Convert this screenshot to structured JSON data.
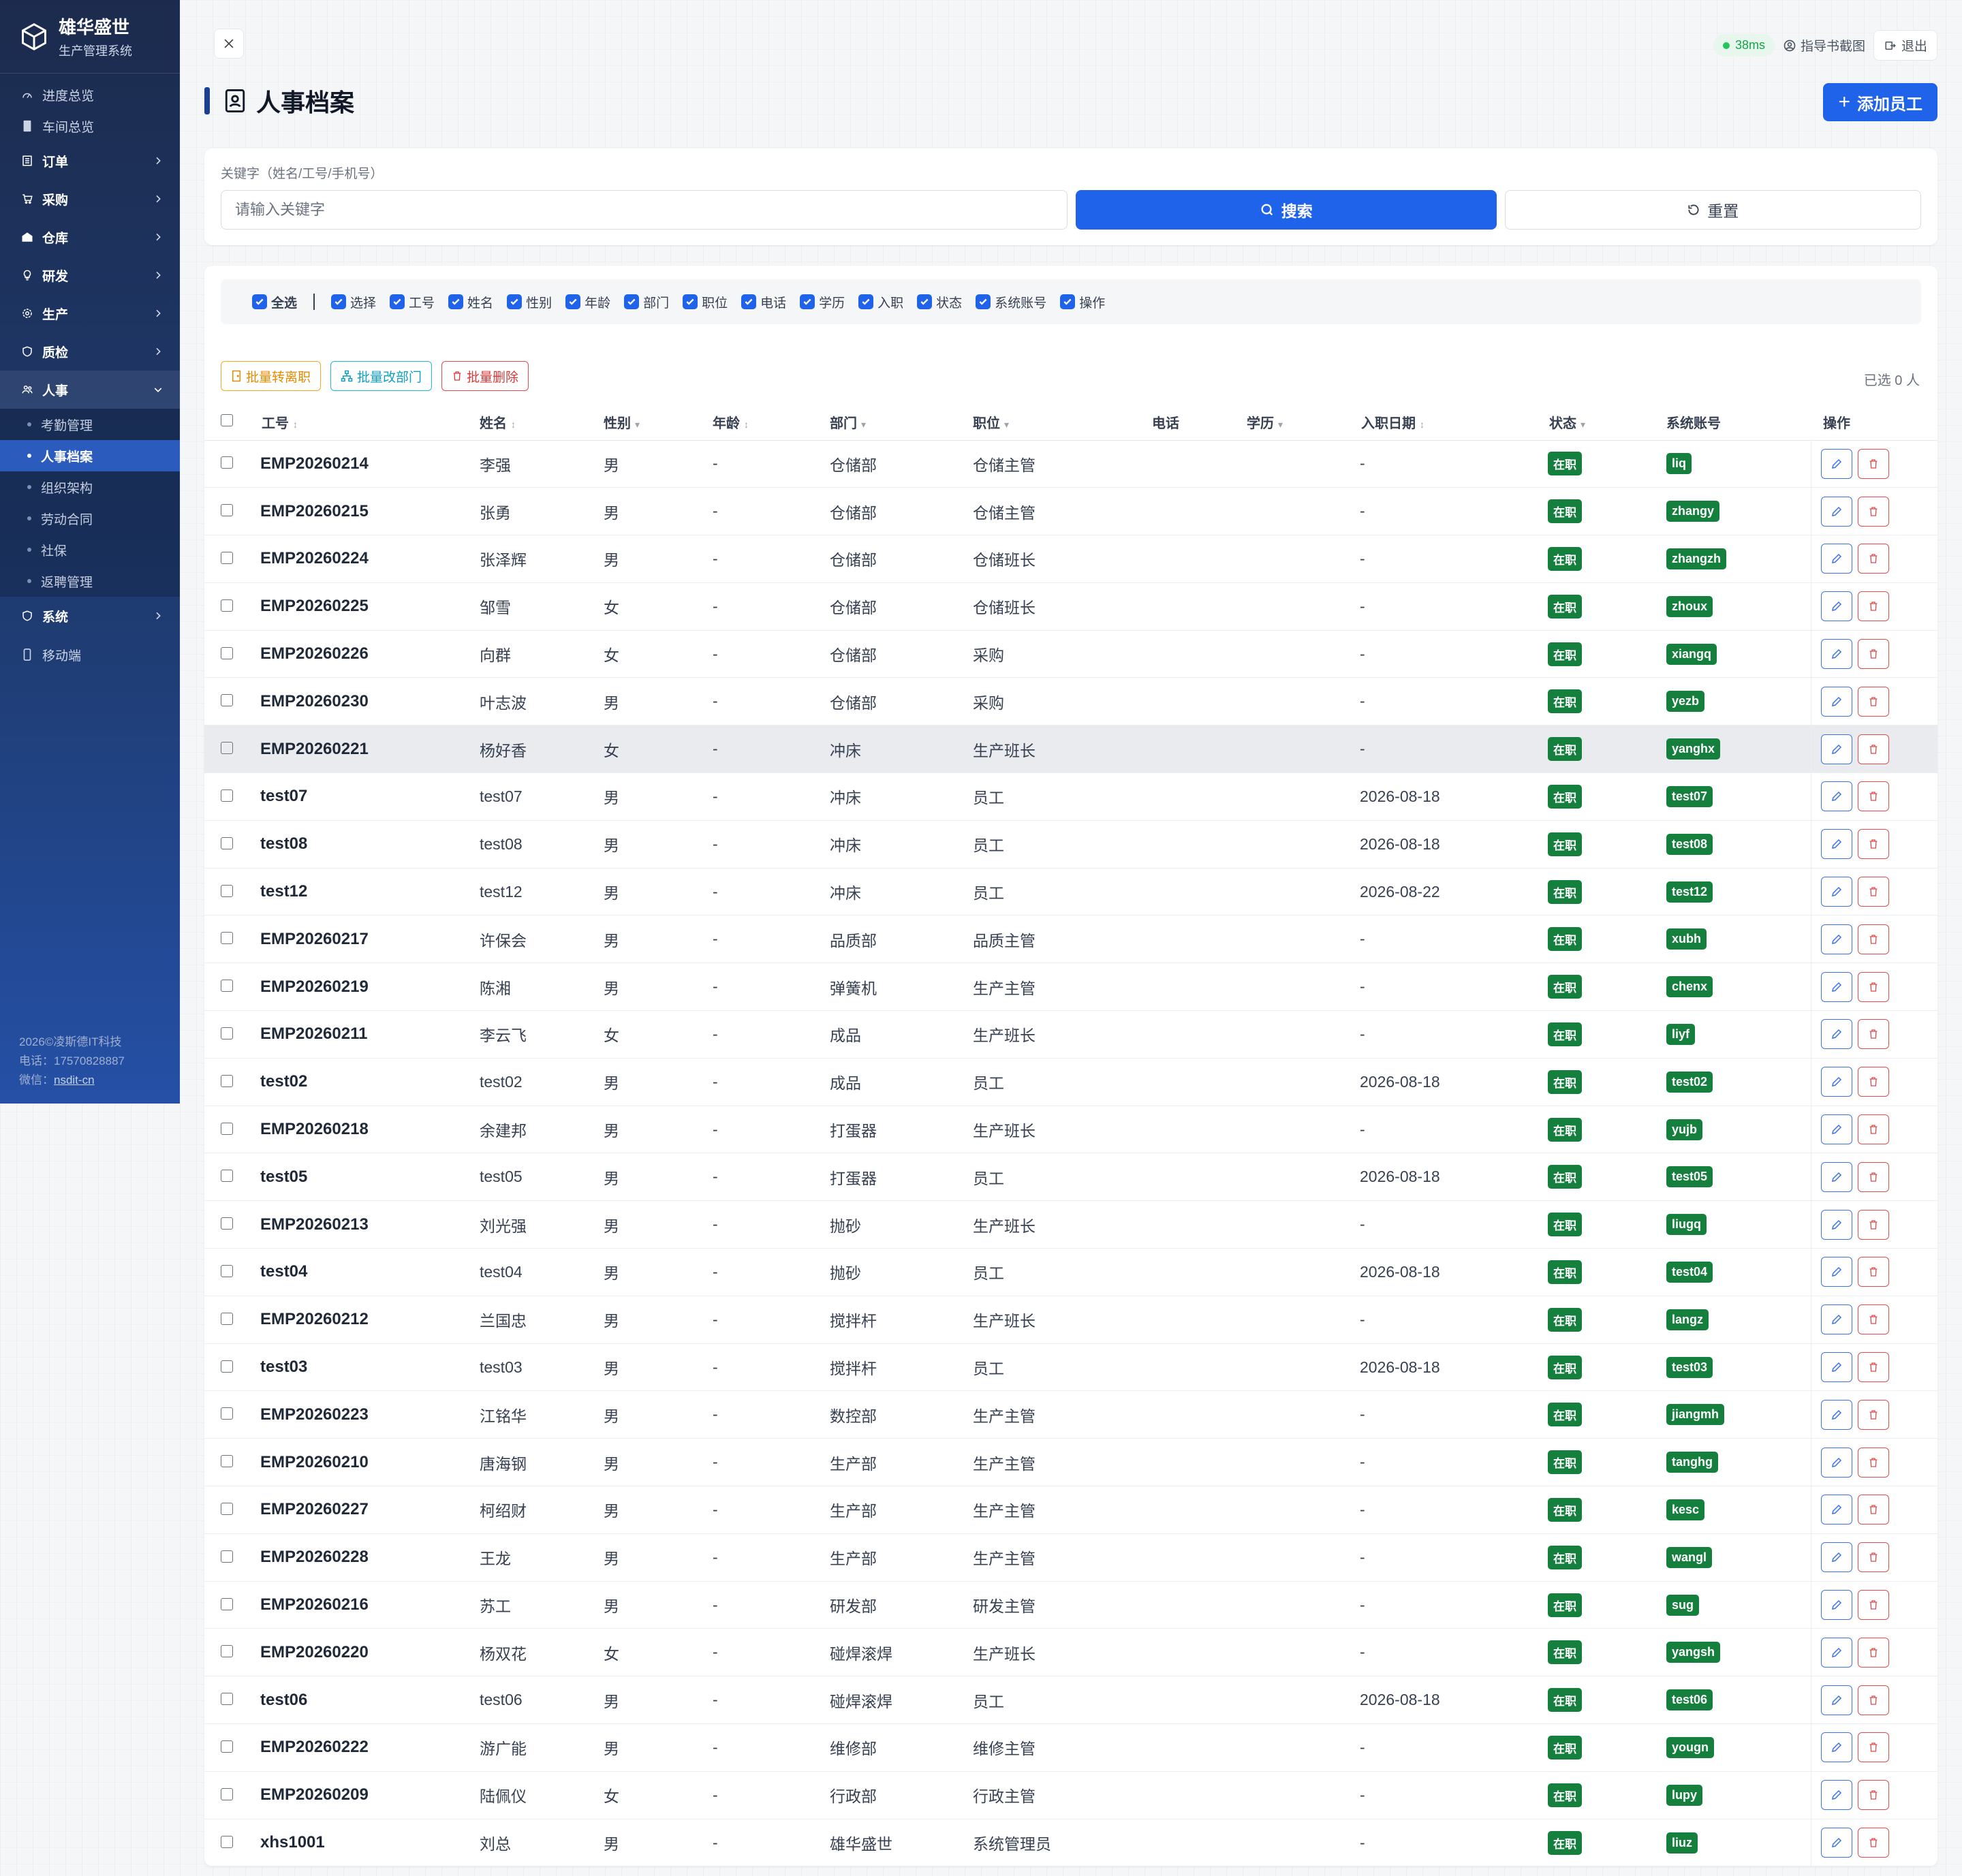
{
  "brand": {
    "title": "雄华盛世",
    "subtitle": "生产管理系统"
  },
  "sidebar": {
    "items": [
      {
        "label": "进度总览",
        "type": "link",
        "icon": "gauge-icon"
      },
      {
        "label": "车间总览",
        "type": "link",
        "icon": "tablet-icon"
      },
      {
        "label": "订单",
        "type": "group",
        "icon": "list-icon"
      },
      {
        "label": "采购",
        "type": "group",
        "icon": "cart-icon"
      },
      {
        "label": "仓库",
        "type": "group",
        "icon": "warehouse-icon"
      },
      {
        "label": "研发",
        "type": "group",
        "icon": "bulb-icon"
      },
      {
        "label": "生产",
        "type": "group",
        "icon": "gear-icon"
      },
      {
        "label": "质检",
        "type": "group",
        "icon": "shield-icon"
      },
      {
        "label": "人事",
        "type": "group",
        "icon": "users-icon",
        "open": true
      }
    ],
    "sub_items": [
      {
        "label": "考勤管理",
        "active": false
      },
      {
        "label": "人事档案",
        "active": true
      },
      {
        "label": "组织架构",
        "active": false
      },
      {
        "label": "劳动合同",
        "active": false
      },
      {
        "label": "社保",
        "active": false
      },
      {
        "label": "返聘管理",
        "active": false
      }
    ],
    "after_items": [
      {
        "label": "系统",
        "type": "group",
        "icon": "shield-icon"
      },
      {
        "label": "移动端",
        "type": "link",
        "icon": "mobile-icon"
      }
    ],
    "footer": {
      "copyright": "2026©凌斯德IT科技",
      "phone": "电话：17570828887",
      "wechat_label": "微信：",
      "wechat": "nsdit-cn"
    }
  },
  "topbar": {
    "latency": "38ms",
    "guide": "指导书截图",
    "logout": "退出"
  },
  "page": {
    "title": "人事档案",
    "add_button": "添加员工"
  },
  "search": {
    "label": "关键字（姓名/工号/手机号）",
    "placeholder": "请输入关键字",
    "value": "",
    "search_button": "搜索",
    "reset_button": "重置"
  },
  "columns_toggle": {
    "all_label": "全选",
    "items": [
      "选择",
      "工号",
      "姓名",
      "性别",
      "年龄",
      "部门",
      "职位",
      "电话",
      "学历",
      "入职",
      "状态",
      "系统账号",
      "操作"
    ]
  },
  "bulk": {
    "to_resign": "批量转离职",
    "change_dept": "批量改部门",
    "delete": "批量删除",
    "selected": "已选 0 人"
  },
  "table": {
    "headers": [
      "工号",
      "姓名",
      "性别",
      "年龄",
      "部门",
      "职位",
      "电话",
      "学历",
      "入职日期",
      "状态",
      "系统账号",
      "操作"
    ],
    "rows": [
      {
        "code": "EMP20260214",
        "name": "李强",
        "gender": "男",
        "age": "-",
        "dept": "仓储部",
        "position": "仓储主管",
        "phone": "",
        "edu": "",
        "date": "-",
        "status": "在职",
        "account": "liq"
      },
      {
        "code": "EMP20260215",
        "name": "张勇",
        "gender": "男",
        "age": "-",
        "dept": "仓储部",
        "position": "仓储主管",
        "phone": "",
        "edu": "",
        "date": "-",
        "status": "在职",
        "account": "zhangy"
      },
      {
        "code": "EMP20260224",
        "name": "张泽辉",
        "gender": "男",
        "age": "-",
        "dept": "仓储部",
        "position": "仓储班长",
        "phone": "",
        "edu": "",
        "date": "-",
        "status": "在职",
        "account": "zhangzh"
      },
      {
        "code": "EMP20260225",
        "name": "邹雪",
        "gender": "女",
        "age": "-",
        "dept": "仓储部",
        "position": "仓储班长",
        "phone": "",
        "edu": "",
        "date": "-",
        "status": "在职",
        "account": "zhoux"
      },
      {
        "code": "EMP20260226",
        "name": "向群",
        "gender": "女",
        "age": "-",
        "dept": "仓储部",
        "position": "采购",
        "phone": "",
        "edu": "",
        "date": "-",
        "status": "在职",
        "account": "xiangq"
      },
      {
        "code": "EMP20260230",
        "name": "叶志波",
        "gender": "男",
        "age": "-",
        "dept": "仓储部",
        "position": "采购",
        "phone": "",
        "edu": "",
        "date": "-",
        "status": "在职",
        "account": "yezb"
      },
      {
        "code": "EMP20260221",
        "name": "杨好香",
        "gender": "女",
        "age": "-",
        "dept": "冲床",
        "position": "生产班长",
        "phone": "",
        "edu": "",
        "date": "-",
        "status": "在职",
        "account": "yanghx",
        "highlight": true
      },
      {
        "code": "test07",
        "name": "test07",
        "gender": "男",
        "age": "-",
        "dept": "冲床",
        "position": "员工",
        "phone": "",
        "edu": "",
        "date": "2026-08-18",
        "status": "在职",
        "account": "test07"
      },
      {
        "code": "test08",
        "name": "test08",
        "gender": "男",
        "age": "-",
        "dept": "冲床",
        "position": "员工",
        "phone": "",
        "edu": "",
        "date": "2026-08-18",
        "status": "在职",
        "account": "test08"
      },
      {
        "code": "test12",
        "name": "test12",
        "gender": "男",
        "age": "-",
        "dept": "冲床",
        "position": "员工",
        "phone": "",
        "edu": "",
        "date": "2026-08-22",
        "status": "在职",
        "account": "test12"
      },
      {
        "code": "EMP20260217",
        "name": "许保会",
        "gender": "男",
        "age": "-",
        "dept": "品质部",
        "position": "品质主管",
        "phone": "",
        "edu": "",
        "date": "-",
        "status": "在职",
        "account": "xubh"
      },
      {
        "code": "EMP20260219",
        "name": "陈湘",
        "gender": "男",
        "age": "-",
        "dept": "弹簧机",
        "position": "生产主管",
        "phone": "",
        "edu": "",
        "date": "-",
        "status": "在职",
        "account": "chenx"
      },
      {
        "code": "EMP20260211",
        "name": "李云飞",
        "gender": "女",
        "age": "-",
        "dept": "成品",
        "position": "生产班长",
        "phone": "",
        "edu": "",
        "date": "-",
        "status": "在职",
        "account": "liyf"
      },
      {
        "code": "test02",
        "name": "test02",
        "gender": "男",
        "age": "-",
        "dept": "成品",
        "position": "员工",
        "phone": "",
        "edu": "",
        "date": "2026-08-18",
        "status": "在职",
        "account": "test02"
      },
      {
        "code": "EMP20260218",
        "name": "余建邦",
        "gender": "男",
        "age": "-",
        "dept": "打蛋器",
        "position": "生产班长",
        "phone": "",
        "edu": "",
        "date": "-",
        "status": "在职",
        "account": "yujb"
      },
      {
        "code": "test05",
        "name": "test05",
        "gender": "男",
        "age": "-",
        "dept": "打蛋器",
        "position": "员工",
        "phone": "",
        "edu": "",
        "date": "2026-08-18",
        "status": "在职",
        "account": "test05"
      },
      {
        "code": "EMP20260213",
        "name": "刘光强",
        "gender": "男",
        "age": "-",
        "dept": "抛砂",
        "position": "生产班长",
        "phone": "",
        "edu": "",
        "date": "-",
        "status": "在职",
        "account": "liugq"
      },
      {
        "code": "test04",
        "name": "test04",
        "gender": "男",
        "age": "-",
        "dept": "抛砂",
        "position": "员工",
        "phone": "",
        "edu": "",
        "date": "2026-08-18",
        "status": "在职",
        "account": "test04"
      },
      {
        "code": "EMP20260212",
        "name": "兰国忠",
        "gender": "男",
        "age": "-",
        "dept": "搅拌杆",
        "position": "生产班长",
        "phone": "",
        "edu": "",
        "date": "-",
        "status": "在职",
        "account": "langz"
      },
      {
        "code": "test03",
        "name": "test03",
        "gender": "男",
        "age": "-",
        "dept": "搅拌杆",
        "position": "员工",
        "phone": "",
        "edu": "",
        "date": "2026-08-18",
        "status": "在职",
        "account": "test03"
      },
      {
        "code": "EMP20260223",
        "name": "江铭华",
        "gender": "男",
        "age": "-",
        "dept": "数控部",
        "position": "生产主管",
        "phone": "",
        "edu": "",
        "date": "-",
        "status": "在职",
        "account": "jiangmh"
      },
      {
        "code": "EMP20260210",
        "name": "唐海钢",
        "gender": "男",
        "age": "-",
        "dept": "生产部",
        "position": "生产主管",
        "phone": "",
        "edu": "",
        "date": "-",
        "status": "在职",
        "account": "tanghg"
      },
      {
        "code": "EMP20260227",
        "name": "柯绍财",
        "gender": "男",
        "age": "-",
        "dept": "生产部",
        "position": "生产主管",
        "phone": "",
        "edu": "",
        "date": "-",
        "status": "在职",
        "account": "kesc"
      },
      {
        "code": "EMP20260228",
        "name": "王龙",
        "gender": "男",
        "age": "-",
        "dept": "生产部",
        "position": "生产主管",
        "phone": "",
        "edu": "",
        "date": "-",
        "status": "在职",
        "account": "wangl"
      },
      {
        "code": "EMP20260216",
        "name": "苏工",
        "gender": "男",
        "age": "-",
        "dept": "研发部",
        "position": "研发主管",
        "phone": "",
        "edu": "",
        "date": "-",
        "status": "在职",
        "account": "sug"
      },
      {
        "code": "EMP20260220",
        "name": "杨双花",
        "gender": "女",
        "age": "-",
        "dept": "碰焊滚焊",
        "position": "生产班长",
        "phone": "",
        "edu": "",
        "date": "-",
        "status": "在职",
        "account": "yangsh"
      },
      {
        "code": "test06",
        "name": "test06",
        "gender": "男",
        "age": "-",
        "dept": "碰焊滚焊",
        "position": "员工",
        "phone": "",
        "edu": "",
        "date": "2026-08-18",
        "status": "在职",
        "account": "test06"
      },
      {
        "code": "EMP20260222",
        "name": "游广能",
        "gender": "男",
        "age": "-",
        "dept": "维修部",
        "position": "维修主管",
        "phone": "",
        "edu": "",
        "date": "-",
        "status": "在职",
        "account": "yougn"
      },
      {
        "code": "EMP20260209",
        "name": "陆佩仪",
        "gender": "女",
        "age": "-",
        "dept": "行政部",
        "position": "行政主管",
        "phone": "",
        "edu": "",
        "date": "-",
        "status": "在职",
        "account": "lupy"
      },
      {
        "code": "xhs1001",
        "name": "刘总",
        "gender": "男",
        "age": "-",
        "dept": "雄华盛世",
        "position": "系统管理员",
        "phone": "",
        "edu": "",
        "date": "-",
        "status": "在职",
        "account": "liuz"
      }
    ]
  },
  "colors": {
    "primary": "#1e63e9",
    "status_green": "#15803d",
    "danger": "#e14b4b",
    "sidebar_top": "#1c2b4d",
    "sidebar_bottom": "#2550a6"
  }
}
